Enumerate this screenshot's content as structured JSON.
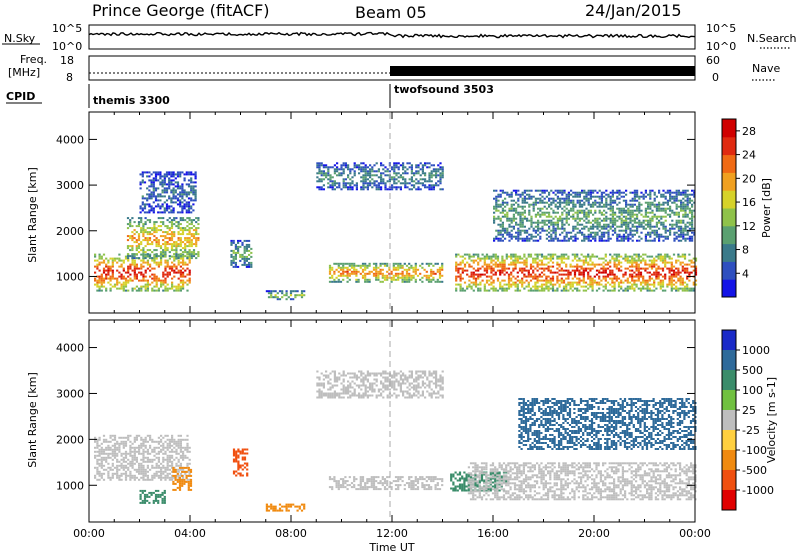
{
  "header": {
    "station": "Prince George (fitACF)",
    "beam": "Beam 05",
    "date": "24/Jan/2015"
  },
  "top_panels": {
    "nsky_label": "N.Sky",
    "nsky_ticks": [
      "10^5",
      "10^0"
    ],
    "nsearch_label": "N.Search",
    "nsearch_ticks": [
      "10^5",
      "10^0"
    ],
    "freq_label_line1": "Freq.",
    "freq_label_line2": "[MHz]",
    "freq_ticks": [
      "18",
      "8"
    ],
    "nave_label": "Nave",
    "nave_ticks": [
      "60",
      "0"
    ],
    "cpid_label": "CPID",
    "cpid_modes": [
      {
        "name": "themis 3300",
        "start": "00:00"
      },
      {
        "name": "twofsound 3503",
        "start": "12:00"
      }
    ]
  },
  "chart_data": [
    {
      "type": "heatmap",
      "name": "Power",
      "xlabel": "",
      "ylabel": "Slant Range [km]",
      "x_ticks": [
        "00:00",
        "04:00",
        "08:00",
        "12:00",
        "16:00",
        "20:00",
        "00:00"
      ],
      "y_ticks": [
        "1000",
        "2000",
        "3000",
        "4000"
      ],
      "ylim": [
        200,
        4600
      ],
      "colorbar": {
        "label": "Power [dB]",
        "ticks": [
          "4",
          "8",
          "12",
          "16",
          "20",
          "24",
          "28"
        ],
        "range": [
          0,
          30
        ],
        "colors": [
          "#1414e6",
          "#2e4fbf",
          "#3a7a8a",
          "#5aa070",
          "#8fc24a",
          "#d6d22a",
          "#f0a020",
          "#f06a14",
          "#e02a10",
          "#d00000"
        ]
      },
      "echo_regions": [
        {
          "t0": 0.2,
          "t1": 4.0,
          "r0": 700,
          "r1": 1500,
          "level": 24
        },
        {
          "t0": 1.5,
          "t1": 4.3,
          "r0": 1400,
          "r1": 2300,
          "level": 18
        },
        {
          "t0": 2.0,
          "t1": 4.2,
          "r0": 2400,
          "r1": 3300,
          "level": 6
        },
        {
          "t0": 5.6,
          "t1": 6.4,
          "r0": 1200,
          "r1": 1800,
          "level": 10
        },
        {
          "t0": 7.0,
          "t1": 8.5,
          "r0": 500,
          "r1": 700,
          "level": 12
        },
        {
          "t0": 9.5,
          "t1": 14.0,
          "r0": 900,
          "r1": 1300,
          "level": 20
        },
        {
          "t0": 9.0,
          "t1": 14.0,
          "r0": 2900,
          "r1": 3500,
          "level": 8
        },
        {
          "t0": 14.5,
          "t1": 24.0,
          "r0": 700,
          "r1": 1500,
          "level": 24
        },
        {
          "t0": 16.0,
          "t1": 24.0,
          "r0": 1800,
          "r1": 2900,
          "level": 10
        }
      ]
    },
    {
      "type": "heatmap",
      "name": "Velocity",
      "xlabel": "Time UT",
      "ylabel": "Slant Range [km]",
      "x_ticks": [
        "00:00",
        "04:00",
        "08:00",
        "12:00",
        "16:00",
        "20:00",
        "00:00"
      ],
      "y_ticks": [
        "1000",
        "2000",
        "3000",
        "4000"
      ],
      "ylim": [
        200,
        4600
      ],
      "colorbar": {
        "label": "Velocity [m s-1]",
        "ticks": [
          "1000",
          "500",
          "100",
          "25",
          "-25",
          "-100",
          "-500",
          "-1000"
        ],
        "colors": [
          "#1a2ac8",
          "#2e6a9a",
          "#3a8c6a",
          "#70c040",
          "#bebebe",
          "#ffd040",
          "#f08a10",
          "#f05010",
          "#e00000"
        ]
      },
      "echo_regions": [
        {
          "t0": 0.2,
          "t1": 4.0,
          "r0": 1100,
          "r1": 2100,
          "level": 0
        },
        {
          "t0": 2.0,
          "t1": 3.0,
          "r0": 600,
          "r1": 900,
          "level": 100
        },
        {
          "t0": 3.3,
          "t1": 4.0,
          "r0": 900,
          "r1": 1400,
          "level": -100
        },
        {
          "t0": 5.7,
          "t1": 6.3,
          "r0": 1200,
          "r1": 1800,
          "level": -500
        },
        {
          "t0": 7.0,
          "t1": 8.5,
          "r0": 450,
          "r1": 600,
          "level": -100
        },
        {
          "t0": 9.5,
          "t1": 14.0,
          "r0": 900,
          "r1": 1200,
          "level": 0
        },
        {
          "t0": 9.0,
          "t1": 14.0,
          "r0": 2900,
          "r1": 3500,
          "level": 0
        },
        {
          "t0": 14.3,
          "t1": 16.5,
          "r0": 900,
          "r1": 1300,
          "level": 100
        },
        {
          "t0": 15.0,
          "t1": 24.0,
          "r0": 700,
          "r1": 1500,
          "level": 0
        },
        {
          "t0": 17.0,
          "t1": 24.0,
          "r0": 1800,
          "r1": 2900,
          "level": 500
        }
      ]
    }
  ]
}
